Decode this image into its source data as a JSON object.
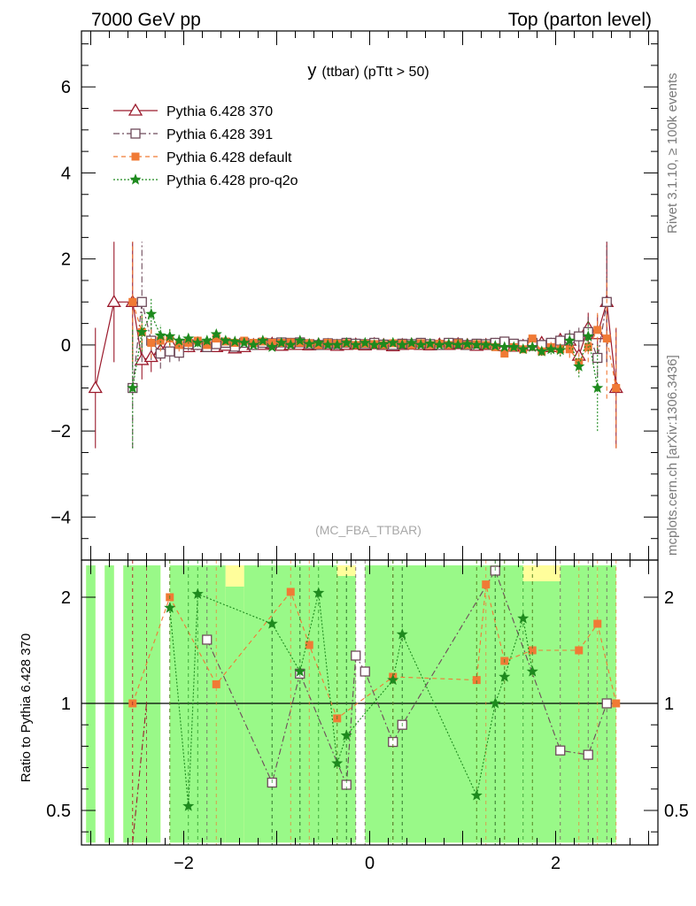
{
  "header": {
    "left": "7000 GeV pp",
    "right": "Top (parton level)"
  },
  "side_labels": {
    "rivet": "Rivet 3.1.10, ≥ 100k events",
    "mcplots": "mcplots.cern.ch [arXiv:1306.3436]"
  },
  "chart_data": [
    {
      "type": "line",
      "title": "y",
      "title_detail": "(ttbar)  (pTtt > 50)",
      "watermark": "(MC_FBA_TTBAR)",
      "xlabel": "",
      "ylabel": "",
      "xlim": [
        -3.1,
        3.1
      ],
      "ylim": [
        -5,
        7.3
      ],
      "x_ticks": [
        -2,
        0,
        2
      ],
      "y_ticks": [
        -4,
        -2,
        0,
        2,
        4,
        6
      ],
      "legend_position": "top-left",
      "series": [
        {
          "name": "Pythia 6.428 370",
          "color": "#9b1a2c",
          "marker": "triangle-open",
          "line_style": "solid",
          "x": [
            -2.95,
            -2.75,
            -2.55,
            -2.45,
            -2.35,
            -2.25,
            -2.15,
            -2.05,
            -1.95,
            -1.85,
            -1.75,
            -1.65,
            -1.55,
            -1.45,
            -1.35,
            -1.25,
            -1.15,
            -1.05,
            -0.95,
            -0.85,
            -0.75,
            -0.65,
            -0.55,
            -0.45,
            -0.35,
            -0.25,
            -0.15,
            -0.05,
            0.05,
            0.15,
            0.25,
            0.35,
            0.45,
            0.55,
            0.65,
            0.75,
            0.85,
            0.95,
            1.05,
            1.15,
            1.25,
            1.35,
            1.45,
            1.55,
            1.65,
            1.75,
            1.85,
            1.95,
            2.05,
            2.15,
            2.25,
            2.35,
            2.45,
            2.55,
            2.65
          ],
          "y": [
            -1.0,
            1.0,
            1.0,
            -0.35,
            -0.28,
            -0.12,
            0.05,
            -0.05,
            -0.05,
            0.0,
            -0.05,
            -0.05,
            -0.02,
            -0.08,
            -0.05,
            0.0,
            0.0,
            0.03,
            -0.02,
            0.0,
            0.0,
            -0.01,
            0.01,
            0.0,
            -0.02,
            0.0,
            0.01,
            -0.01,
            0.02,
            0.0,
            -0.03,
            0.0,
            0.01,
            0.0,
            -0.01,
            0.01,
            0.0,
            0.02,
            0.0,
            -0.02,
            0.0,
            0.0,
            -0.03,
            -0.04,
            -0.02,
            -0.02,
            0.05,
            -0.05,
            0.12,
            0.1,
            -0.25,
            0.4,
            0.25,
            1.0,
            -1.0
          ],
          "err": [
            1.4,
            1.4,
            1.4,
            0.45,
            0.35,
            0.25,
            0.2,
            0.15,
            0.12,
            0.1,
            0.09,
            0.08,
            0.07,
            0.06,
            0.06,
            0.05,
            0.05,
            0.05,
            0.04,
            0.04,
            0.04,
            0.04,
            0.04,
            0.04,
            0.04,
            0.04,
            0.04,
            0.04,
            0.04,
            0.04,
            0.04,
            0.04,
            0.04,
            0.04,
            0.04,
            0.04,
            0.04,
            0.04,
            0.05,
            0.05,
            0.05,
            0.06,
            0.06,
            0.07,
            0.08,
            0.09,
            0.1,
            0.12,
            0.15,
            0.2,
            0.25,
            0.35,
            0.45,
            1.4,
            1.4
          ]
        },
        {
          "name": "Pythia 6.428 391",
          "color": "#6e4a5a",
          "marker": "square-open",
          "line_style": "dashdot",
          "x": [
            -2.55,
            -2.45,
            -2.35,
            -2.25,
            -2.15,
            -2.05,
            -1.95,
            -1.85,
            -1.75,
            -1.65,
            -1.55,
            -1.45,
            -1.35,
            -1.25,
            -1.15,
            -1.05,
            -0.95,
            -0.85,
            -0.75,
            -0.65,
            -0.55,
            -0.45,
            -0.35,
            -0.25,
            -0.15,
            -0.05,
            0.05,
            0.15,
            0.25,
            0.35,
            0.45,
            0.55,
            0.65,
            0.75,
            0.85,
            0.95,
            1.05,
            1.15,
            1.25,
            1.35,
            1.45,
            1.55,
            1.65,
            1.75,
            1.85,
            1.95,
            2.05,
            2.15,
            2.25,
            2.35,
            2.45,
            2.55
          ],
          "y": [
            -1.0,
            1.0,
            0.1,
            -0.2,
            -0.15,
            -0.18,
            0.02,
            0.0,
            -0.05,
            0.02,
            0.05,
            -0.04,
            0.05,
            0.0,
            0.05,
            0.04,
            0.06,
            0.05,
            0.06,
            0.02,
            0.0,
            0.04,
            0.02,
            0.05,
            0.03,
            0.02,
            0.05,
            0.01,
            0.0,
            0.03,
            0.02,
            0.05,
            0.02,
            0.0,
            0.05,
            0.04,
            0.0,
            0.03,
            0.02,
            0.05,
            0.08,
            0.03,
            0.0,
            0.05,
            0.0,
            0.05,
            0.1,
            0.15,
            0.2,
            0.3,
            -0.3,
            1.0
          ],
          "err": [
            1.4,
            1.4,
            0.45,
            0.35,
            0.25,
            0.2,
            0.15,
            0.12,
            0.1,
            0.09,
            0.08,
            0.07,
            0.06,
            0.06,
            0.05,
            0.05,
            0.05,
            0.04,
            0.04,
            0.04,
            0.04,
            0.04,
            0.04,
            0.04,
            0.04,
            0.04,
            0.04,
            0.04,
            0.04,
            0.04,
            0.04,
            0.04,
            0.04,
            0.04,
            0.04,
            0.04,
            0.05,
            0.05,
            0.05,
            0.06,
            0.06,
            0.07,
            0.08,
            0.09,
            0.1,
            0.12,
            0.15,
            0.2,
            0.25,
            0.35,
            0.45,
            1.4
          ]
        },
        {
          "name": "Pythia 6.428 default",
          "color": "#f07a35",
          "marker": "square-filled",
          "line_style": "dashed",
          "x": [
            -2.55,
            -2.45,
            -2.35,
            -2.25,
            -2.15,
            -2.05,
            -1.95,
            -1.85,
            -1.75,
            -1.65,
            -1.55,
            -1.45,
            -1.35,
            -1.25,
            -1.15,
            -1.05,
            -0.95,
            -0.85,
            -0.75,
            -0.65,
            -0.55,
            -0.45,
            -0.35,
            -0.25,
            -0.15,
            -0.05,
            0.05,
            0.15,
            0.25,
            0.35,
            0.45,
            0.55,
            0.65,
            0.75,
            0.85,
            0.95,
            1.05,
            1.15,
            1.25,
            1.35,
            1.45,
            1.55,
            1.65,
            1.75,
            1.85,
            1.95,
            2.05,
            2.15,
            2.25,
            2.35,
            2.45,
            2.55,
            2.65
          ],
          "y": [
            1.0,
            0.3,
            0.05,
            0.1,
            0.15,
            0.0,
            0.05,
            0.1,
            0.0,
            0.15,
            0.08,
            0.05,
            0.1,
            0.05,
            0.08,
            0.05,
            0.05,
            0.06,
            0.05,
            0.04,
            0.0,
            0.05,
            0.03,
            0.04,
            0.0,
            0.03,
            0.02,
            0.0,
            0.04,
            0.03,
            0.0,
            0.04,
            0.0,
            0.03,
            0.0,
            0.04,
            0.0,
            0.02,
            0.0,
            -0.05,
            -0.2,
            -0.05,
            -0.1,
            0.15,
            -0.15,
            -0.05,
            -0.1,
            -0.1,
            -0.4,
            -0.05,
            0.35,
            0.15,
            -1.0
          ],
          "err": [
            1.4,
            0.45,
            0.35,
            0.25,
            0.2,
            0.15,
            0.12,
            0.1,
            0.09,
            0.08,
            0.07,
            0.06,
            0.06,
            0.05,
            0.05,
            0.05,
            0.04,
            0.04,
            0.04,
            0.04,
            0.04,
            0.04,
            0.04,
            0.04,
            0.04,
            0.04,
            0.04,
            0.04,
            0.04,
            0.04,
            0.04,
            0.04,
            0.04,
            0.04,
            0.04,
            0.04,
            0.05,
            0.05,
            0.05,
            0.06,
            0.06,
            0.07,
            0.08,
            0.09,
            0.1,
            0.12,
            0.15,
            0.2,
            0.25,
            0.35,
            0.45,
            1.4,
            1.4
          ]
        },
        {
          "name": "Pythia 6.428 pro-q2o",
          "color": "#1e8a1e",
          "marker": "star",
          "line_style": "dotted",
          "x": [
            -2.55,
            -2.45,
            -2.35,
            -2.25,
            -2.15,
            -2.05,
            -1.95,
            -1.85,
            -1.75,
            -1.65,
            -1.55,
            -1.45,
            -1.35,
            -1.25,
            -1.15,
            -1.05,
            -0.95,
            -0.85,
            -0.75,
            -0.65,
            -0.55,
            -0.45,
            -0.35,
            -0.25,
            -0.15,
            -0.05,
            0.05,
            0.15,
            0.25,
            0.35,
            0.45,
            0.55,
            0.65,
            0.75,
            0.85,
            0.95,
            1.05,
            1.15,
            1.25,
            1.35,
            1.45,
            1.55,
            1.65,
            1.75,
            1.85,
            1.95,
            2.05,
            2.15,
            2.25,
            2.35,
            2.45
          ],
          "y": [
            -1.0,
            0.3,
            0.72,
            0.22,
            0.2,
            0.1,
            0.15,
            0.05,
            0.1,
            0.25,
            0.1,
            0.08,
            0.05,
            0.0,
            0.1,
            -0.05,
            0.05,
            0.0,
            0.1,
            0.02,
            0.05,
            0.0,
            0.0,
            0.05,
            0.0,
            0.05,
            0.0,
            0.02,
            0.05,
            0.0,
            0.05,
            0.0,
            0.03,
            0.0,
            0.02,
            0.0,
            0.02,
            0.0,
            0.0,
            -0.02,
            -0.05,
            -0.05,
            -0.1,
            -0.05,
            -0.15,
            -0.1,
            -0.12,
            0.1,
            -0.5,
            0.2,
            -1.0
          ],
          "err": [
            1.4,
            0.45,
            0.35,
            0.25,
            0.2,
            0.15,
            0.12,
            0.1,
            0.09,
            0.08,
            0.07,
            0.06,
            0.06,
            0.05,
            0.05,
            0.05,
            0.04,
            0.04,
            0.04,
            0.04,
            0.04,
            0.04,
            0.04,
            0.04,
            0.04,
            0.04,
            0.04,
            0.04,
            0.04,
            0.04,
            0.04,
            0.04,
            0.04,
            0.04,
            0.04,
            0.04,
            0.05,
            0.05,
            0.05,
            0.06,
            0.06,
            0.07,
            0.08,
            0.09,
            0.1,
            0.12,
            0.15,
            0.2,
            0.25,
            0.35,
            1.0
          ]
        }
      ]
    },
    {
      "type": "line",
      "title": "",
      "xlabel": "",
      "ylabel": "Ratio to Pythia 6.428 370",
      "xlim": [
        -3.1,
        3.1
      ],
      "ylim": [
        0.35,
        2.35
      ],
      "x_ticks": [
        -2,
        0,
        2
      ],
      "y_ticks": [
        0.5,
        1,
        2
      ],
      "reference_line": 1,
      "band_colors": {
        "outer": "#fffe9b",
        "inner": "#99f988"
      },
      "bands": [
        {
          "x0": -3.05,
          "x1": -2.95,
          "lo": 0.35,
          "hi": 2.3,
          "inner_lo": 0.35,
          "inner_hi": 2.3
        },
        {
          "x0": -2.85,
          "x1": -2.75,
          "lo": 0.35,
          "hi": 2.3,
          "inner_lo": 0.35,
          "inner_hi": 2.3
        },
        {
          "x0": -2.65,
          "x1": -2.55,
          "lo": 0.35,
          "hi": 2.3,
          "inner_lo": 0.35,
          "inner_hi": 2.3
        },
        {
          "x0": -2.55,
          "x1": -2.25,
          "lo": 0.35,
          "hi": 2.3,
          "inner_lo": 0.35,
          "inner_hi": 2.3
        },
        {
          "x0": -2.15,
          "x1": -1.55,
          "lo": 0.35,
          "hi": 2.3,
          "inner_lo": 0.35,
          "inner_hi": 2.3
        },
        {
          "x0": -1.55,
          "x1": -1.35,
          "lo": 0.35,
          "hi": 2.3,
          "inner_lo": 0.35,
          "inner_hi": 2.1
        },
        {
          "x0": -1.35,
          "x1": -0.35,
          "lo": 0.35,
          "hi": 2.3,
          "inner_lo": 0.35,
          "inner_hi": 2.3
        },
        {
          "x0": -0.35,
          "x1": -0.15,
          "lo": 0.35,
          "hi": 2.3,
          "inner_lo": 0.35,
          "inner_hi": 2.2
        },
        {
          "x0": -0.05,
          "x1": 0.25,
          "lo": 0.35,
          "hi": 2.3,
          "inner_lo": 0.35,
          "inner_hi": 2.3
        },
        {
          "x0": 0.25,
          "x1": 1.65,
          "lo": 0.35,
          "hi": 2.3,
          "inner_lo": 0.35,
          "inner_hi": 2.3
        },
        {
          "x0": 1.65,
          "x1": 2.05,
          "lo": 0.35,
          "hi": 2.3,
          "inner_lo": 0.35,
          "inner_hi": 2.15
        },
        {
          "x0": 2.05,
          "x1": 2.45,
          "lo": 0.35,
          "hi": 2.3,
          "inner_lo": 0.35,
          "inner_hi": 2.3
        },
        {
          "x0": 2.45,
          "x1": 2.65,
          "lo": 0.35,
          "hi": 2.3,
          "inner_lo": 0.35,
          "inner_hi": 2.3
        }
      ],
      "series": [
        {
          "name": "Pythia 6.428 391",
          "color": "#6e4a5a",
          "marker": "square-open",
          "x": [
            -1.75,
            -1.05,
            -0.75,
            -0.25,
            -0.15,
            -0.05,
            0.25,
            0.35,
            1.35,
            2.05,
            2.35,
            2.55
          ],
          "y": [
            1.6,
            0.63,
            1.28,
            0.62,
            1.45,
            1.3,
            0.82,
            0.9,
            2.25,
            0.78,
            0.76,
            1.0
          ]
        },
        {
          "name": "Pythia 6.428 default",
          "color": "#f07a35",
          "marker": "square-filled",
          "x": [
            -2.55,
            -2.15,
            -1.65,
            -0.85,
            -0.65,
            -0.35,
            0.25,
            1.15,
            1.25,
            1.45,
            1.75,
            2.25,
            2.45,
            2.65
          ],
          "y": [
            1.0,
            2.0,
            1.18,
            2.05,
            1.55,
            0.93,
            1.25,
            1.22,
            2.12,
            1.4,
            1.5,
            1.5,
            1.75,
            1.0
          ]
        },
        {
          "name": "Pythia 6.428 pro-q2o",
          "color": "#1e8a1e",
          "marker": "star",
          "x": [
            -2.15,
            -1.95,
            -1.85,
            -1.05,
            -0.75,
            -0.55,
            -0.35,
            -0.25,
            0.25,
            0.35,
            1.15,
            1.35,
            1.45,
            1.65,
            1.75
          ],
          "y": [
            1.9,
            0.52,
            2.03,
            1.75,
            1.3,
            2.04,
            0.72,
            0.85,
            1.22,
            1.65,
            0.57,
            1.0,
            1.25,
            1.8,
            1.3
          ]
        },
        {
          "name": "Pythia 6.428 370",
          "color": "#9b1a2c",
          "marker": "none",
          "x": [
            -2.55,
            -2.4
          ],
          "y": [
            0.35,
            1.0
          ]
        }
      ]
    }
  ]
}
